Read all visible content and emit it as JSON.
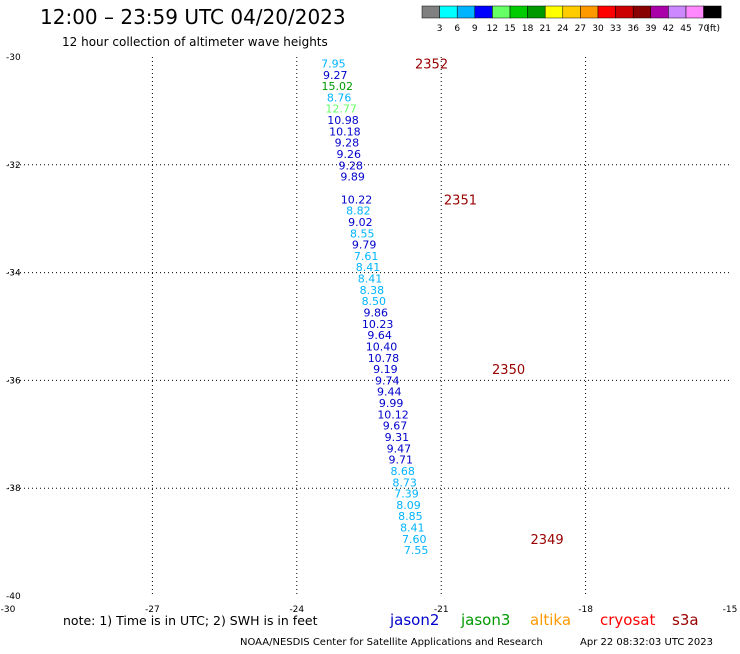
{
  "header": {
    "title": "12:00 – 23:59 UTC 04/20/2023",
    "subtitle": "12 hour collection of altimeter wave heights"
  },
  "colorbar": {
    "labels": [
      "3",
      "6",
      "9",
      "12",
      "15",
      "18",
      "21",
      "24",
      "27",
      "30",
      "33",
      "36",
      "39",
      "42",
      "45",
      "70"
    ],
    "unit": "(ft)",
    "colors": [
      "#808080",
      "#00ffff",
      "#00b4ff",
      "#0000ff",
      "#66ff66",
      "#00cc00",
      "#009900",
      "#ffff00",
      "#ffcc00",
      "#ff9900",
      "#ff0000",
      "#cc0000",
      "#880000",
      "#aa00aa",
      "#cc88ff",
      "#ff88ff",
      "#000000"
    ]
  },
  "footer": {
    "note": "note:  1) Time is in UTC;  2) SWH is in feet",
    "legend": [
      {
        "name": "jason2",
        "color": "#0000cc"
      },
      {
        "name": "jason3",
        "color": "#009900"
      },
      {
        "name": "altika",
        "color": "#ff9900"
      },
      {
        "name": "cryosat",
        "color": "#ff0000"
      },
      {
        "name": "s3a",
        "color": "#990000"
      }
    ],
    "credit": "NOAA/NESDIS Center for Satellite Applications and Research",
    "timestamp": "Apr 22 08:32:03 UTC 2023"
  },
  "chart_data": {
    "type": "scatter",
    "xlim": [
      -30,
      -15
    ],
    "ylim": [
      -40,
      -30
    ],
    "xticks": [
      "-30",
      "-27",
      "-24",
      "-21",
      "-18",
      "-15"
    ],
    "yticks": [
      "-30",
      "-32",
      "-34",
      "-36",
      "-38",
      "-40"
    ],
    "grid": true,
    "tick_values": {
      "x": [
        -30,
        -27,
        -24,
        -21,
        -18,
        -15
      ],
      "y": [
        -30,
        -32,
        -34,
        -36,
        -38,
        -40
      ]
    },
    "points": [
      {
        "x": -23.24,
        "y": -30.12,
        "v": "7.95",
        "c": "#00b4ff"
      },
      {
        "x": -23.2,
        "y": -30.33,
        "v": "9.27",
        "c": "#0000cc"
      },
      {
        "x": -23.16,
        "y": -30.54,
        "v": "15.02",
        "c": "#009900"
      },
      {
        "x": -23.12,
        "y": -30.75,
        "v": "8.76",
        "c": "#00b4ff"
      },
      {
        "x": -23.08,
        "y": -30.96,
        "v": "12.77",
        "c": "#66ff66"
      },
      {
        "x": -23.04,
        "y": -31.17,
        "v": "10.98",
        "c": "#0000cc"
      },
      {
        "x": -23.0,
        "y": -31.38,
        "v": "10.18",
        "c": "#0000cc"
      },
      {
        "x": -22.96,
        "y": -31.59,
        "v": "9.28",
        "c": "#0000cc"
      },
      {
        "x": -22.92,
        "y": -31.8,
        "v": "9.26",
        "c": "#0000cc"
      },
      {
        "x": -22.88,
        "y": -32.01,
        "v": "9.28",
        "c": "#0000cc"
      },
      {
        "x": -22.84,
        "y": -32.22,
        "v": "9.89",
        "c": "#0000cc"
      },
      {
        "x": -22.76,
        "y": -32.64,
        "v": "10.22",
        "c": "#0000cc"
      },
      {
        "x": -22.72,
        "y": -32.85,
        "v": "8.82",
        "c": "#00b4ff"
      },
      {
        "x": -22.68,
        "y": -33.06,
        "v": "9.02",
        "c": "#0000cc"
      },
      {
        "x": -22.64,
        "y": -33.27,
        "v": "8.55",
        "c": "#00b4ff"
      },
      {
        "x": -22.6,
        "y": -33.48,
        "v": "9.79",
        "c": "#0000cc"
      },
      {
        "x": -22.56,
        "y": -33.69,
        "v": "7.61",
        "c": "#00b4ff"
      },
      {
        "x": -22.52,
        "y": -33.9,
        "v": "8.41",
        "c": "#00b4ff"
      },
      {
        "x": -22.48,
        "y": -34.11,
        "v": "8.41",
        "c": "#00b4ff"
      },
      {
        "x": -22.44,
        "y": -34.32,
        "v": "8.38",
        "c": "#00b4ff"
      },
      {
        "x": -22.4,
        "y": -34.53,
        "v": "8.50",
        "c": "#00b4ff"
      },
      {
        "x": -22.36,
        "y": -34.74,
        "v": "9.86",
        "c": "#0000cc"
      },
      {
        "x": -22.32,
        "y": -34.95,
        "v": "10.23",
        "c": "#0000cc"
      },
      {
        "x": -22.28,
        "y": -35.16,
        "v": "9.64",
        "c": "#0000cc"
      },
      {
        "x": -22.24,
        "y": -35.37,
        "v": "10.40",
        "c": "#0000cc"
      },
      {
        "x": -22.2,
        "y": -35.58,
        "v": "10.78",
        "c": "#0000cc"
      },
      {
        "x": -22.16,
        "y": -35.79,
        "v": "9.19",
        "c": "#0000cc"
      },
      {
        "x": -22.12,
        "y": -36.0,
        "v": "9.74",
        "c": "#0000cc"
      },
      {
        "x": -22.08,
        "y": -36.21,
        "v": "9.44",
        "c": "#0000cc"
      },
      {
        "x": -22.04,
        "y": -36.42,
        "v": "9.99",
        "c": "#0000cc"
      },
      {
        "x": -22.0,
        "y": -36.63,
        "v": "10.12",
        "c": "#0000cc"
      },
      {
        "x": -21.96,
        "y": -36.84,
        "v": "9.67",
        "c": "#0000cc"
      },
      {
        "x": -21.92,
        "y": -37.05,
        "v": "9.31",
        "c": "#0000cc"
      },
      {
        "x": -21.88,
        "y": -37.26,
        "v": "9.47",
        "c": "#0000cc"
      },
      {
        "x": -21.84,
        "y": -37.47,
        "v": "9.71",
        "c": "#0000cc"
      },
      {
        "x": -21.8,
        "y": -37.68,
        "v": "8.68",
        "c": "#00b4ff"
      },
      {
        "x": -21.76,
        "y": -37.89,
        "v": "8.73",
        "c": "#00b4ff"
      },
      {
        "x": -21.72,
        "y": -38.1,
        "v": "7.39",
        "c": "#00b4ff"
      },
      {
        "x": -21.68,
        "y": -38.31,
        "v": "8.09",
        "c": "#00b4ff"
      },
      {
        "x": -21.64,
        "y": -38.52,
        "v": "8.85",
        "c": "#00b4ff"
      },
      {
        "x": -21.6,
        "y": -38.73,
        "v": "8.41",
        "c": "#00b4ff"
      },
      {
        "x": -21.56,
        "y": -38.94,
        "v": "7.60",
        "c": "#00b4ff"
      },
      {
        "x": -21.52,
        "y": -39.15,
        "v": "7.55",
        "c": "#00b4ff"
      }
    ],
    "time_labels": [
      {
        "x": -21.2,
        "y": -30.12,
        "t": "2352"
      },
      {
        "x": -20.6,
        "y": -32.64,
        "t": "2351"
      },
      {
        "x": -19.6,
        "y": -35.79,
        "t": "2350"
      },
      {
        "x": -18.8,
        "y": -38.94,
        "t": "2349"
      }
    ]
  }
}
